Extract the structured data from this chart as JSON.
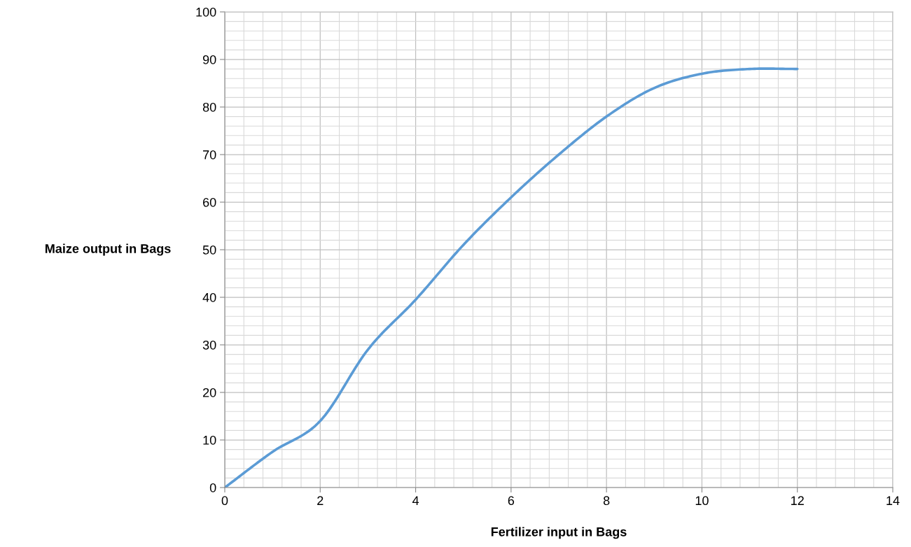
{
  "chart_data": {
    "type": "line",
    "xlabel": "Fertilizer input in Bags",
    "ylabel": "Maize output in Bags",
    "x": [
      0,
      1,
      2,
      3,
      4,
      5,
      6,
      7,
      8,
      9,
      10,
      11,
      12
    ],
    "series": [
      {
        "color": "#5b9bd5",
        "values": [
          0,
          7.5,
          14,
          29,
          39.5,
          51,
          61,
          70,
          78,
          84,
          87,
          88,
          88
        ]
      }
    ],
    "xlim": [
      0,
      14
    ],
    "xticks": [
      0,
      2,
      4,
      6,
      8,
      10,
      12,
      14
    ],
    "ylim": [
      0,
      100
    ],
    "yticks": [
      0,
      10,
      20,
      30,
      40,
      50,
      60,
      70,
      80,
      90,
      100
    ],
    "grid": true,
    "marker": "none",
    "line_style": "solid",
    "legend": false
  }
}
